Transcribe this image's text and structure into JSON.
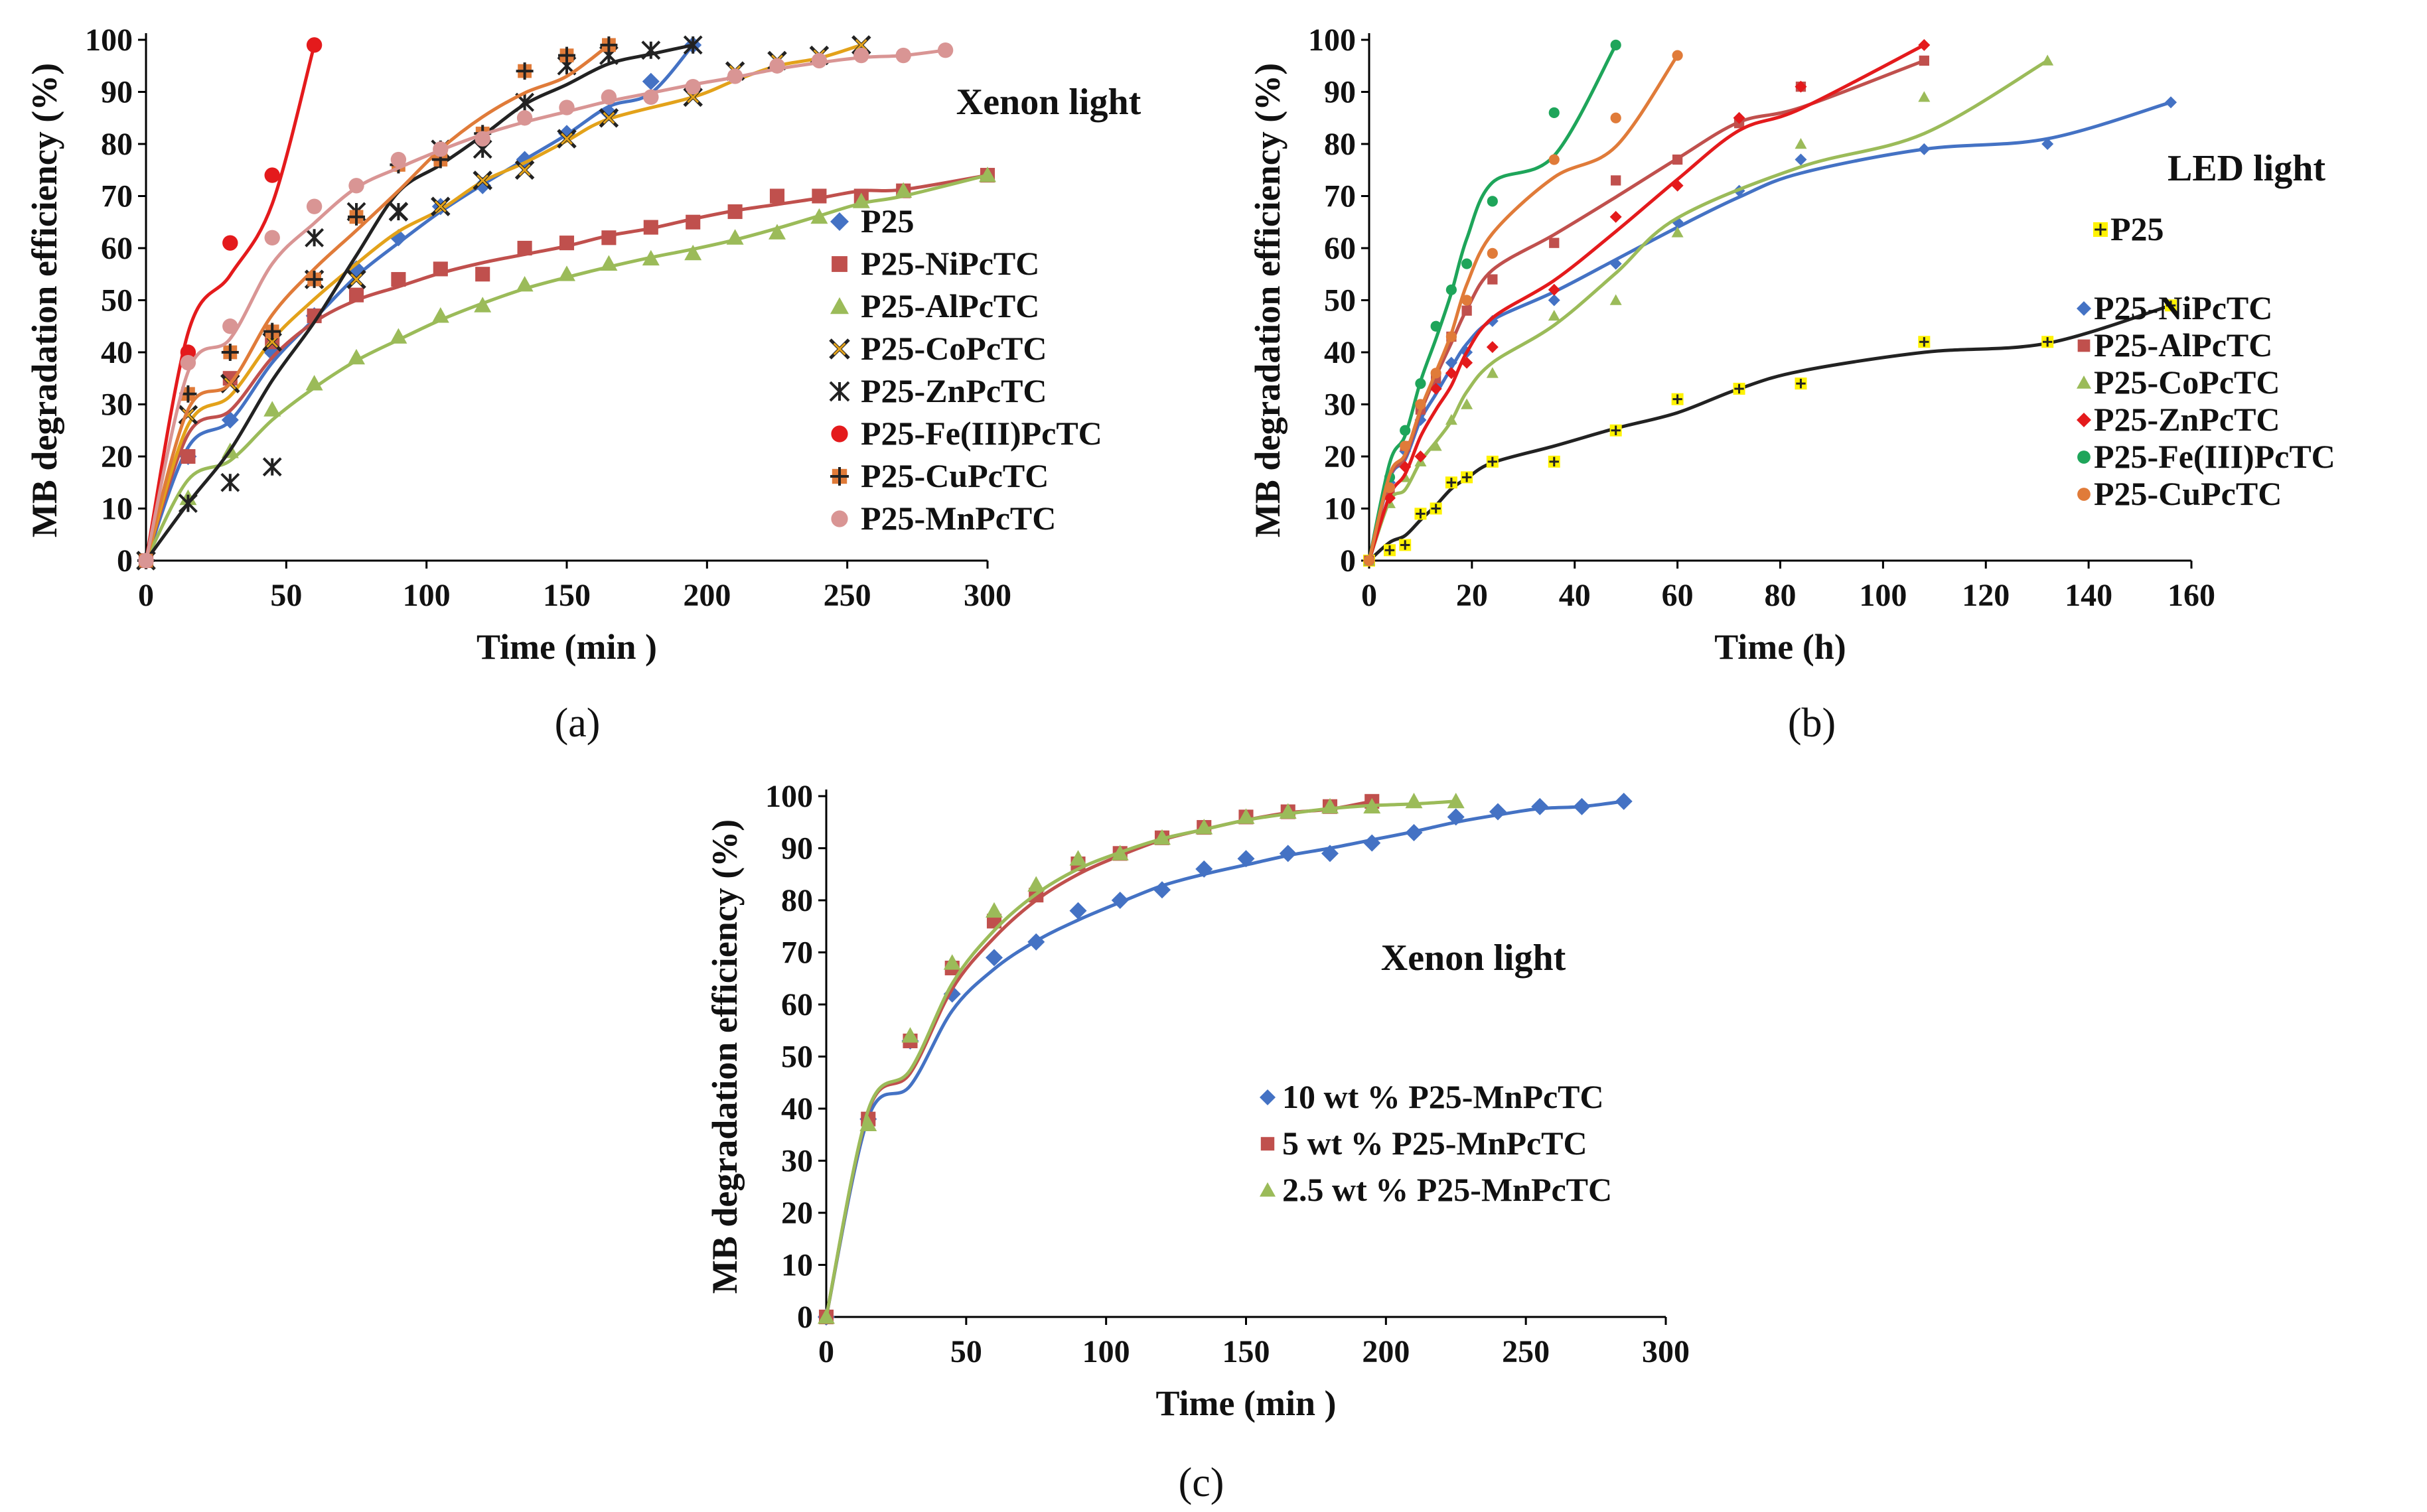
{
  "chart_data": [
    {
      "type": "scatter",
      "panel_label": "(a)",
      "condition": "Xenon light",
      "xlabel": "Time (min )",
      "ylabel": "MB degradation efficiency (%)",
      "xlim": [
        0,
        300
      ],
      "xticks": [
        0,
        50,
        100,
        150,
        200,
        250,
        300
      ],
      "ylim": [
        0,
        100
      ],
      "yticks": [
        0,
        10,
        20,
        30,
        40,
        50,
        60,
        70,
        80,
        90,
        100
      ],
      "legend_position": "right",
      "series": [
        {
          "name": "P25",
          "color": "#4472C4",
          "marker": "diamond",
          "x": [
            0,
            15,
            30,
            45,
            60,
            75,
            90,
            105,
            120,
            135,
            150,
            165,
            180,
            195
          ],
          "y": [
            0,
            20,
            27,
            40,
            47,
            56,
            62,
            68,
            72,
            77,
            82,
            86,
            92,
            99
          ]
        },
        {
          "name": "P25-NiPcTC",
          "color": "#C0504D",
          "marker": "square",
          "x": [
            0,
            15,
            30,
            45,
            60,
            75,
            90,
            105,
            120,
            135,
            150,
            165,
            180,
            195,
            210,
            225,
            240,
            255,
            270,
            300
          ],
          "y": [
            0,
            20,
            35,
            42,
            47,
            51,
            54,
            56,
            55,
            60,
            61,
            62,
            64,
            65,
            67,
            70,
            70,
            70,
            71,
            74
          ]
        },
        {
          "name": "P25-AlPcTC",
          "color": "#9BBB59",
          "marker": "triangle",
          "x": [
            0,
            15,
            30,
            45,
            60,
            75,
            90,
            105,
            120,
            135,
            150,
            165,
            180,
            195,
            210,
            225,
            240,
            255,
            270,
            300
          ],
          "y": [
            0,
            12,
            21,
            29,
            34,
            39,
            43,
            47,
            49,
            53,
            55,
            57,
            58,
            59,
            62,
            63,
            66,
            69,
            71,
            74
          ]
        },
        {
          "name": "P25-CoPcTC",
          "color": "#E3A21A",
          "marker": "x",
          "x": [
            0,
            15,
            30,
            45,
            60,
            75,
            90,
            105,
            120,
            135,
            150,
            165,
            195,
            210,
            225,
            240,
            255
          ],
          "y": [
            0,
            28,
            34,
            42,
            54,
            54,
            67,
            68,
            73,
            75,
            81,
            85,
            89,
            94,
            96,
            97,
            99
          ]
        },
        {
          "name": "P25-ZnPcTC",
          "color": "#222222",
          "marker": "asterisk",
          "x": [
            0,
            15,
            30,
            45,
            60,
            75,
            90,
            105,
            120,
            135,
            150,
            165,
            180,
            195
          ],
          "y": [
            0,
            11,
            15,
            18,
            62,
            67,
            67,
            79,
            79,
            88,
            95,
            97,
            98,
            99
          ]
        },
        {
          "name": "P25-Fe(III)PcTC",
          "color": "#E41A1C",
          "marker": "circle",
          "x": [
            0,
            15,
            30,
            45,
            60
          ],
          "y": [
            0,
            40,
            61,
            74,
            99
          ]
        },
        {
          "name": "P25-CuPcTC",
          "color": "#E07B39",
          "marker": "plus-square",
          "x": [
            0,
            15,
            30,
            45,
            60,
            75,
            90,
            105,
            120,
            135,
            150,
            165
          ],
          "y": [
            0,
            32,
            40,
            44,
            54,
            66,
            76,
            77,
            82,
            94,
            97,
            99
          ]
        },
        {
          "name": "P25-MnPcTC",
          "color": "#D99594",
          "marker": "circle",
          "x": [
            0,
            15,
            30,
            45,
            60,
            75,
            90,
            105,
            120,
            135,
            150,
            165,
            180,
            195,
            210,
            225,
            240,
            255,
            270,
            285
          ],
          "y": [
            0,
            38,
            45,
            62,
            68,
            72,
            77,
            79,
            81,
            85,
            87,
            89,
            89,
            91,
            93,
            95,
            96,
            97,
            97,
            98
          ]
        }
      ]
    },
    {
      "type": "scatter",
      "panel_label": "(b)",
      "condition": "LED light",
      "xlabel": "Time (h)",
      "ylabel": "MB degradation efficiency (%)",
      "xlim": [
        0,
        160
      ],
      "xticks": [
        0,
        20,
        40,
        60,
        80,
        100,
        120,
        140,
        160
      ],
      "ylim": [
        0,
        100
      ],
      "yticks": [
        0,
        10,
        20,
        30,
        40,
        50,
        60,
        70,
        80,
        90,
        100
      ],
      "legend_position": "right",
      "series": [
        {
          "name": "P25",
          "color": "#222222",
          "marker": "plus-yellow",
          "x": [
            0,
            4,
            7,
            10,
            13,
            16,
            19,
            24,
            36,
            48,
            60,
            72,
            84,
            108,
            132,
            156
          ],
          "y": [
            0,
            2,
            3,
            9,
            10,
            15,
            16,
            19,
            19,
            25,
            31,
            33,
            34,
            42,
            42,
            49
          ]
        },
        {
          "name": "P25-NiPcTC",
          "color": "#4472C4",
          "marker": "diamond",
          "x": [
            0,
            4,
            7,
            10,
            13,
            16,
            19,
            24,
            36,
            48,
            60,
            72,
            84,
            108,
            132,
            156
          ],
          "y": [
            0,
            15,
            21,
            27,
            34,
            38,
            40,
            46,
            50,
            57,
            65,
            71,
            77,
            79,
            80,
            88
          ]
        },
        {
          "name": "P25-AlPcTC",
          "color": "#C0504D",
          "marker": "square",
          "x": [
            0,
            4,
            7,
            10,
            13,
            16,
            19,
            24,
            36,
            48,
            60,
            72,
            84,
            108
          ],
          "y": [
            0,
            13,
            22,
            29,
            35,
            43,
            48,
            54,
            61,
            73,
            77,
            84,
            91,
            96
          ]
        },
        {
          "name": "P25-CoPcTC",
          "color": "#9BBB59",
          "marker": "triangle",
          "x": [
            0,
            4,
            7,
            10,
            13,
            16,
            19,
            24,
            36,
            48,
            60,
            84,
            108,
            132
          ],
          "y": [
            0,
            11,
            16,
            19,
            22,
            27,
            30,
            36,
            47,
            50,
            63,
            80,
            89,
            96
          ]
        },
        {
          "name": "P25-ZnPcTC",
          "color": "#E41A1C",
          "marker": "diamond",
          "x": [
            0,
            4,
            7,
            10,
            13,
            16,
            19,
            24,
            36,
            48,
            60,
            72,
            84,
            108
          ],
          "y": [
            0,
            12,
            18,
            20,
            33,
            36,
            38,
            41,
            52,
            66,
            72,
            85,
            91,
            99
          ]
        },
        {
          "name": "P25-Fe(III)PcTC",
          "color": "#1EA55A",
          "marker": "circle",
          "x": [
            0,
            4,
            7,
            10,
            13,
            16,
            19,
            24,
            36,
            48
          ],
          "y": [
            0,
            16,
            25,
            34,
            45,
            52,
            57,
            69,
            86,
            99
          ]
        },
        {
          "name": "P25-CuPcTC",
          "color": "#E07B39",
          "marker": "circle",
          "x": [
            0,
            4,
            7,
            10,
            13,
            16,
            19,
            24,
            36,
            48,
            60
          ],
          "y": [
            0,
            14,
            22,
            30,
            36,
            43,
            50,
            59,
            77,
            85,
            97
          ]
        }
      ]
    },
    {
      "type": "scatter",
      "panel_label": "(c)",
      "condition": "Xenon light",
      "xlabel": "Time (min )",
      "ylabel": "MB degradation efficiency (%)",
      "xlim": [
        0,
        300
      ],
      "xticks": [
        0,
        50,
        100,
        150,
        200,
        250,
        300
      ],
      "ylim": [
        0,
        100
      ],
      "yticks": [
        0,
        10,
        20,
        30,
        40,
        50,
        60,
        70,
        80,
        90,
        100
      ],
      "legend_position": "bottom-right",
      "series": [
        {
          "name": "10 wt % P25-MnPcTC",
          "color": "#4472C4",
          "marker": "diamond",
          "x": [
            0,
            15,
            30,
            45,
            60,
            75,
            90,
            105,
            120,
            135,
            150,
            165,
            180,
            195,
            210,
            225,
            240,
            255,
            270,
            285
          ],
          "y": [
            0,
            38,
            53,
            62,
            69,
            72,
            78,
            80,
            82,
            86,
            88,
            89,
            89,
            91,
            93,
            96,
            97,
            98,
            98,
            99
          ]
        },
        {
          "name": "5 wt % P25-MnPcTC",
          "color": "#C0504D",
          "marker": "square",
          "x": [
            0,
            15,
            30,
            45,
            60,
            75,
            90,
            105,
            120,
            135,
            150,
            165,
            180,
            195
          ],
          "y": [
            0,
            38,
            53,
            67,
            76,
            81,
            87,
            89,
            92,
            94,
            96,
            97,
            98,
            99
          ]
        },
        {
          "name": "2.5 wt % P25-MnPcTC",
          "color": "#9BBB59",
          "marker": "triangle",
          "x": [
            0,
            15,
            30,
            45,
            60,
            75,
            90,
            105,
            120,
            135,
            150,
            165,
            180,
            195,
            210,
            225
          ],
          "y": [
            0,
            37,
            54,
            68,
            78,
            83,
            88,
            89,
            92,
            94,
            96,
            97,
            98,
            98,
            99,
            99
          ]
        }
      ]
    }
  ]
}
